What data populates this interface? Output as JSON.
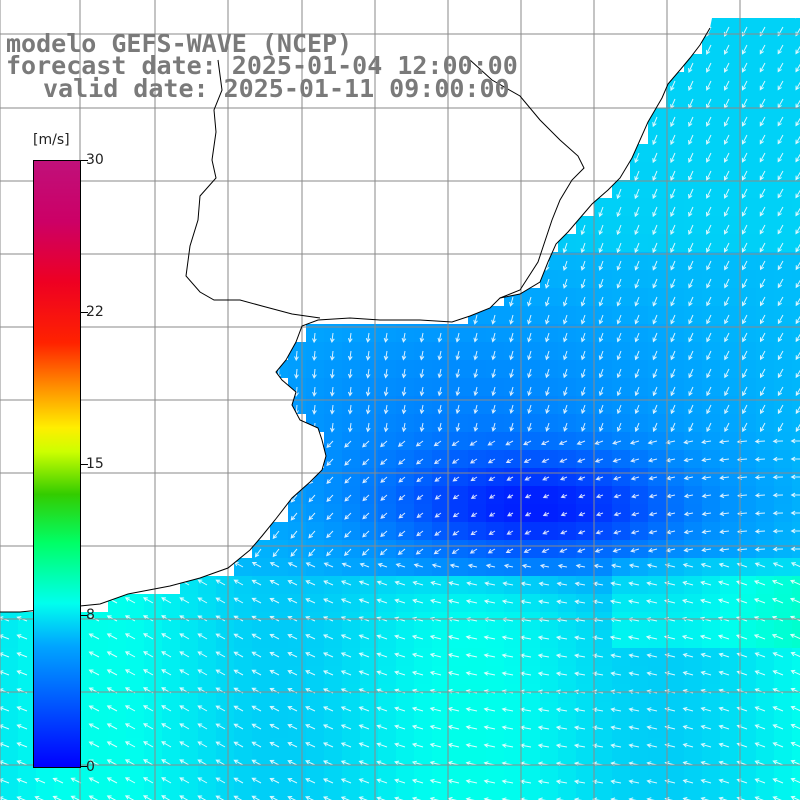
{
  "header": {
    "title": "modelo GEFS-WAVE (NCEP)",
    "forecast_date": "forecast date: 2025-01-04 12:00:00",
    "valid_date": "valid date: 2025-01-11 09:00:00"
  },
  "colorbar": {
    "unit": "[m/s]",
    "ticks": [
      "30",
      "22",
      "15",
      "8",
      "0"
    ]
  },
  "colors": {
    "low": "#0000ff",
    "mid": "#00c8ff",
    "high": "#c0107a",
    "text": "#7a7a7a"
  }
}
